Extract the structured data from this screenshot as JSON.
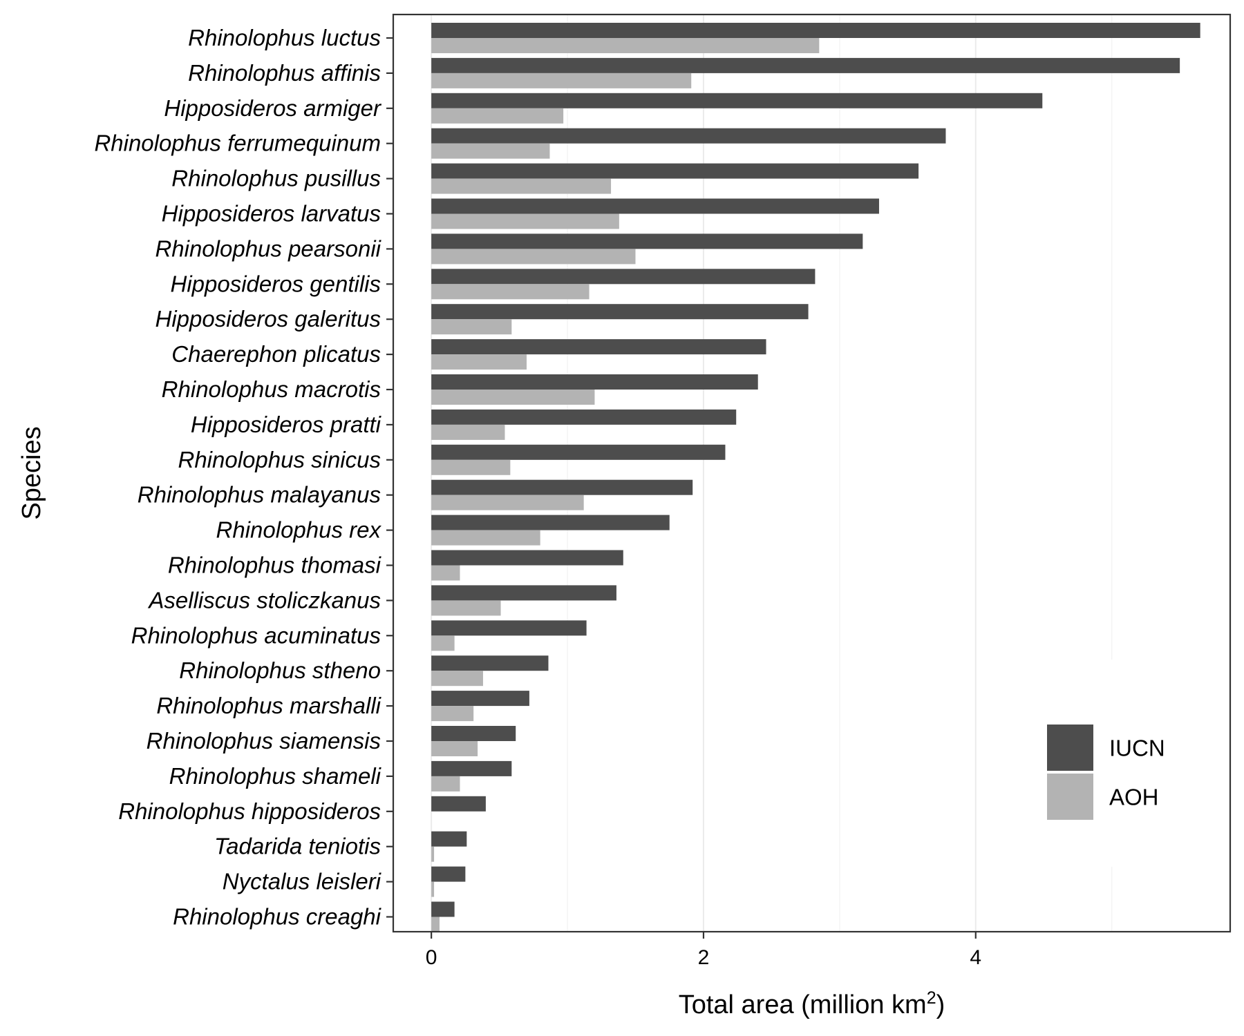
{
  "chart_data": {
    "type": "bar",
    "orientation": "horizontal",
    "categories": [
      "Rhinolophus luctus",
      "Rhinolophus affinis",
      "Hipposideros armiger",
      "Rhinolophus ferrumequinum",
      "Rhinolophus pusillus",
      "Hipposideros larvatus",
      "Rhinolophus pearsonii",
      "Hipposideros gentilis",
      "Hipposideros galeritus",
      "Chaerephon plicatus",
      "Rhinolophus macrotis",
      "Hipposideros pratti",
      "Rhinolophus sinicus",
      "Rhinolophus malayanus",
      "Rhinolophus rex",
      "Rhinolophus thomasi",
      "Aselliscus stoliczkanus",
      "Rhinolophus acuminatus",
      "Rhinolophus stheno",
      "Rhinolophus marshalli",
      "Rhinolophus siamensis",
      "Rhinolophus shameli",
      "Rhinolophus hipposideros",
      "Tadarida teniotis",
      "Nyctalus leisleri",
      "Rhinolophus creaghi"
    ],
    "series": [
      {
        "name": "IUCN",
        "color": "#4d4d4d",
        "values": [
          5.65,
          5.5,
          4.49,
          3.78,
          3.58,
          3.29,
          3.17,
          2.82,
          2.77,
          2.46,
          2.4,
          2.24,
          2.16,
          1.92,
          1.75,
          1.41,
          1.36,
          1.14,
          0.86,
          0.72,
          0.62,
          0.59,
          0.4,
          0.26,
          0.25,
          0.17
        ]
      },
      {
        "name": "AOH",
        "color": "#b3b3b3",
        "values": [
          2.85,
          1.91,
          0.97,
          0.87,
          1.32,
          1.38,
          1.5,
          1.16,
          0.59,
          0.7,
          1.2,
          0.54,
          0.58,
          1.12,
          0.8,
          0.21,
          0.51,
          0.17,
          0.38,
          0.31,
          0.34,
          0.21,
          0.0,
          0.02,
          0.02,
          0.06
        ]
      }
    ],
    "title": "",
    "xlabel": "Total area (million km",
    "xlabel_superscript": "2",
    "xlabel_close": ")",
    "ylabel": "Species",
    "xlim": [
      -0.28,
      5.87
    ],
    "xticks": [
      0,
      2,
      4
    ],
    "xtick_labels": [
      "0",
      "2",
      "4"
    ],
    "grid": true,
    "legend_position": "bottom-right inside"
  }
}
